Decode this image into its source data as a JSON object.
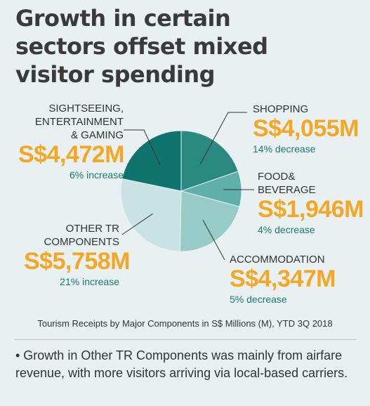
{
  "title_lines": [
    "Growth in certain",
    "sectors offset mixed",
    "visitor spending"
  ],
  "chart_data": {
    "type": "pie",
    "title": "Growth in certain sectors offset mixed visitor spending",
    "caption": "Tourism Receipts by Major Components in S$ Millions (M), YTD 3Q 2018",
    "slices": [
      {
        "name": "SHOPPING",
        "value": 4055,
        "value_label": "S$4,055M",
        "change": "14% decrease",
        "color": "#2a8a82"
      },
      {
        "name": "FOOD&\nBEVERAGE",
        "value": 1946,
        "value_label": "S$1,946M",
        "change": "4% decrease",
        "color": "#5fb0aa"
      },
      {
        "name": "ACCOMMODATION",
        "value": 4347,
        "value_label": "S$4,347M",
        "change": "5% decrease",
        "color": "#96cbc7"
      },
      {
        "name": "OTHER TR\nCOMPONENTS",
        "value": 5758,
        "value_label": "S$5,758M",
        "change": "21% increase",
        "color": "#c8e3e1"
      },
      {
        "name": "SIGHTSEEING,\nENTERTAINMENT\n& GAMING",
        "value": 4472,
        "value_label": "S$4,472M",
        "change": "6% increase",
        "color": "#0f736e"
      }
    ]
  },
  "note": "• Growth in Other TR Components was mainly from airfare revenue, with more visitors arriving via local-based carriers."
}
